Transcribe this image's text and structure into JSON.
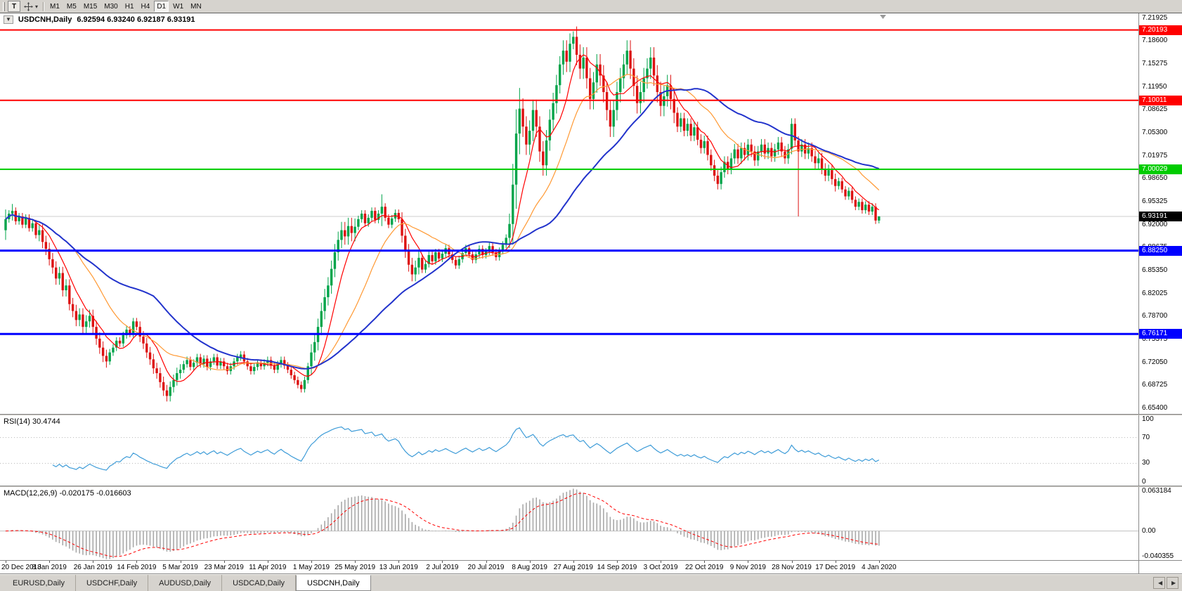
{
  "toolbar": {
    "templates_label": "T",
    "dropdown_caret": "▾",
    "periods": [
      "M1",
      "M5",
      "M15",
      "M30",
      "H1",
      "H4",
      "D1",
      "W1",
      "MN"
    ],
    "active_period": "D1"
  },
  "chart": {
    "collapse_marker": "▼",
    "title_symbol": "USDCNH,Daily",
    "title_ohlc": "6.92594 6.93240 6.92187 6.93191"
  },
  "price_axis": {
    "labels": [
      "7.21925",
      "7.18600",
      "7.15275",
      "7.11950",
      "7.08625",
      "7.05300",
      "7.01975",
      "6.98650",
      "6.95325",
      "6.92000",
      "6.88675",
      "6.85350",
      "6.82025",
      "6.78700",
      "6.75375",
      "6.72050",
      "6.68725",
      "6.65400"
    ]
  },
  "levels": [
    {
      "value": "7.20193",
      "price": 7.20193,
      "color": "#ff0000",
      "width": 2
    },
    {
      "value": "7.10011",
      "price": 7.10011,
      "color": "#ff0000",
      "width": 2
    },
    {
      "value": "7.00029",
      "price": 7.00029,
      "color": "#00cc00",
      "width": 2
    },
    {
      "value": "6.88250",
      "price": 6.8825,
      "color": "#0000ff",
      "width": 3
    },
    {
      "value": "6.76171",
      "price": 6.76171,
      "color": "#0000ff",
      "width": 3
    }
  ],
  "current_price": {
    "value": "6.93191",
    "price": 6.93191,
    "bg": "#000000"
  },
  "chart_data": {
    "type": "candlestick",
    "title": "USDCNH,Daily",
    "last_ohlc": {
      "open": 6.92594,
      "high": 6.9324,
      "low": 6.92187,
      "close": 6.93191
    },
    "ylim": [
      6.646,
      7.226
    ],
    "up_color": "#00a44a",
    "down_color": "#dd1111",
    "first_open": 6.912,
    "closes": [
      6.928,
      6.936,
      6.94,
      6.925,
      6.932,
      6.92,
      6.93,
      6.915,
      6.922,
      6.905,
      6.912,
      6.895,
      6.885,
      6.87,
      6.858,
      6.842,
      6.85,
      6.825,
      6.832,
      6.805,
      6.795,
      6.782,
      6.79,
      6.772,
      6.78,
      6.788,
      6.772,
      6.755,
      6.742,
      6.73,
      6.722,
      6.735,
      6.742,
      6.752,
      6.748,
      6.76,
      6.768,
      6.762,
      6.78,
      6.772,
      6.758,
      6.748,
      6.735,
      6.725,
      6.712,
      6.705,
      6.692,
      6.68,
      6.672,
      6.685,
      6.695,
      6.705,
      6.71,
      6.718,
      6.724,
      6.714,
      6.72,
      6.728,
      6.718,
      6.726,
      6.714,
      6.722,
      6.728,
      6.716,
      6.722,
      6.715,
      6.708,
      6.715,
      6.722,
      6.728,
      6.732,
      6.722,
      6.715,
      6.708,
      6.714,
      6.72,
      6.715,
      6.72,
      6.724,
      6.716,
      6.71,
      6.718,
      6.724,
      6.716,
      6.71,
      6.702,
      6.695,
      6.688,
      6.682,
      6.695,
      6.715,
      6.735,
      6.75,
      6.772,
      6.795,
      6.815,
      6.832,
      6.856,
      6.88,
      6.898,
      6.912,
      6.903,
      6.918,
      6.908,
      6.917,
      6.928,
      6.936,
      6.922,
      6.93,
      6.94,
      6.927,
      6.936,
      6.946,
      6.93,
      6.92,
      6.929,
      6.937,
      6.928,
      6.904,
      6.882,
      6.862,
      6.848,
      6.858,
      6.872,
      6.855,
      6.863,
      6.876,
      6.867,
      6.88,
      6.871,
      6.878,
      6.886,
      6.877,
      6.869,
      6.861,
      6.87,
      6.879,
      6.886,
      6.877,
      6.869,
      6.877,
      6.885,
      6.876,
      6.881,
      6.889,
      6.88,
      6.873,
      6.882,
      6.891,
      6.901,
      6.921,
      6.978,
      7.052,
      7.088,
      7.062,
      7.036,
      7.056,
      7.086,
      7.062,
      7.026,
      7.006,
      7.042,
      7.072,
      7.096,
      7.122,
      7.152,
      7.172,
      7.156,
      7.182,
      7.192,
      7.166,
      7.146,
      7.162,
      7.132,
      7.102,
      7.126,
      7.152,
      7.136,
      7.112,
      7.086,
      7.062,
      7.086,
      7.112,
      7.132,
      7.152,
      7.172,
      7.146,
      7.121,
      7.096,
      7.112,
      7.132,
      7.146,
      7.162,
      7.136,
      7.112,
      7.092,
      7.106,
      7.122,
      7.102,
      7.082,
      7.062,
      7.074,
      7.056,
      7.066,
      7.049,
      7.061,
      7.043,
      7.031,
      7.041,
      7.021,
      7.006,
      6.991,
      6.979,
      6.996,
      7.011,
      7.001,
      7.016,
      7.029,
      7.016,
      7.031,
      7.021,
      7.036,
      7.026,
      7.013,
      7.026,
      7.036,
      7.023,
      7.031,
      7.019,
      7.029,
      7.039,
      7.026,
      7.016,
      7.029,
      7.066,
      7.042,
      7.026,
      7.036,
      7.023,
      7.031,
      7.019,
      7.009,
      7.016,
      7.001,
      6.991,
      6.999,
      6.986,
      6.976,
      6.983,
      6.971,
      6.961,
      6.969,
      6.956,
      6.946,
      6.953,
      6.941,
      6.949,
      6.939,
      6.946,
      6.926,
      6.93191
    ],
    "wick_default": 0.005,
    "wick_zones": [
      [
        10,
        30,
        0.009
      ],
      [
        40,
        52,
        0.008
      ],
      [
        91,
        104,
        0.012
      ],
      [
        118,
        123,
        0.01
      ],
      [
        150,
        199,
        0.015
      ],
      [
        200,
        247,
        0.008
      ]
    ],
    "wick_overrides": {
      "0": 0.014,
      "2": 0.01,
      "112": 0.018,
      "151": 0.03,
      "152": 0.035,
      "153": 0.03,
      "165": 0.012,
      "169": 0.008
    },
    "candle_overrides": {
      "234": [
        7.03,
        7.074,
        7.022,
        7.066
      ],
      "236": [
        7.042,
        7.048,
        6.932,
        7.026
      ],
      "260": [
        6.92594,
        6.9324,
        6.92187,
        6.93191
      ]
    },
    "sma": [
      {
        "period": 8,
        "color": "#ff0000",
        "width": 1.2
      },
      {
        "period": 21,
        "color": "#ff9933",
        "width": 1.2
      },
      {
        "period": 45,
        "color": "#2233cc",
        "width": 2
      }
    ],
    "date_ticks": [
      {
        "i": 0,
        "label": "20 Dec 2018"
      },
      {
        "i": 13,
        "label": "8 Jan 2019"
      },
      {
        "i": 26,
        "label": "26 Jan 2019"
      },
      {
        "i": 39,
        "label": "14 Feb 2019"
      },
      {
        "i": 52,
        "label": "5 Mar 2019"
      },
      {
        "i": 65,
        "label": "23 Mar 2019"
      },
      {
        "i": 78,
        "label": "11 Apr 2019"
      },
      {
        "i": 91,
        "label": "1 May 2019"
      },
      {
        "i": 104,
        "label": "25 May 2019"
      },
      {
        "i": 117,
        "label": "13 Jun 2019"
      },
      {
        "i": 130,
        "label": "2 Jul 2019"
      },
      {
        "i": 143,
        "label": "20 Jul 2019"
      },
      {
        "i": 156,
        "label": "8 Aug 2019"
      },
      {
        "i": 169,
        "label": "27 Aug 2019"
      },
      {
        "i": 182,
        "label": "14 Sep 2019"
      },
      {
        "i": 195,
        "label": "3 Oct 2019"
      },
      {
        "i": 208,
        "label": "22 Oct 2019"
      },
      {
        "i": 221,
        "label": "9 Nov 2019"
      },
      {
        "i": 234,
        "label": "28 Nov 2019"
      },
      {
        "i": 247,
        "label": "17 Dec 2019"
      },
      {
        "i": 260,
        "label": "4 Jan 2020"
      }
    ],
    "rsi": {
      "label": "RSI(14) 30.4744",
      "period": 14,
      "value": 30.4744,
      "color": "#3e9cd8",
      "levels": [
        70,
        30
      ],
      "axis_marks": [
        100,
        70,
        30,
        0
      ],
      "range": [
        0,
        100
      ]
    },
    "macd": {
      "label": "MACD(12,26,9) -0.020175 -0.016603",
      "fast": 12,
      "slow": 26,
      "signal": 9,
      "main_value": -0.020175,
      "signal_value": -0.016603,
      "bar_color": "#a9a9a9",
      "signal_color": "#ff0000",
      "axis_marks": [
        {
          "v": 0.063184,
          "t": "0.063184"
        },
        {
          "v": 0,
          "t": "0.00"
        },
        {
          "v": -0.040355,
          "t": "-0.040355"
        }
      ],
      "range": [
        -0.040355,
        0.063184
      ]
    }
  },
  "tabs": {
    "items": [
      "EURUSD,Daily",
      "USDCHF,Daily",
      "AUDUSD,Daily",
      "USDCAD,Daily",
      "USDCNH,Daily"
    ],
    "active": "USDCNH,Daily",
    "scroll_left": "◀",
    "scroll_right": "▶"
  }
}
